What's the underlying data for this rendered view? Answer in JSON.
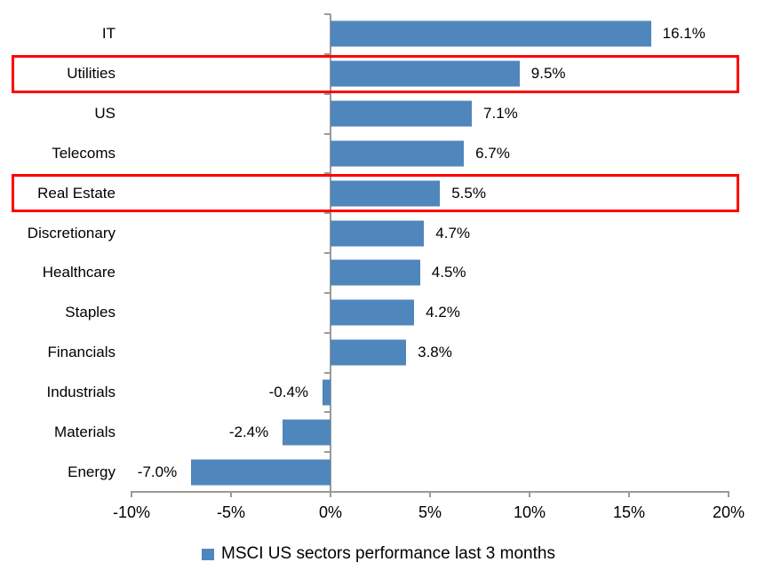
{
  "chart_data": {
    "type": "bar",
    "orientation": "horizontal",
    "categories": [
      "IT",
      "Utilities",
      "US",
      "Telecoms",
      "Real Estate",
      "Discretionary",
      "Healthcare",
      "Staples",
      "Financials",
      "Industrials",
      "Materials",
      "Energy"
    ],
    "values": [
      16.1,
      9.5,
      7.1,
      6.7,
      5.5,
      4.7,
      4.5,
      4.2,
      3.8,
      -0.4,
      -2.4,
      -7.0
    ],
    "value_labels": [
      "16.1%",
      "9.5%",
      "7.1%",
      "6.7%",
      "5.5%",
      "4.7%",
      "4.5%",
      "4.2%",
      "3.8%",
      "-0.4%",
      "-2.4%",
      "-7.0%"
    ],
    "highlighted_categories": [
      "Utilities",
      "Real Estate"
    ],
    "x_tick_labels": [
      "-10%",
      "-5%",
      "0%",
      "5%",
      "10%",
      "15%",
      "20%"
    ],
    "x_tick_values": [
      -10,
      -5,
      0,
      5,
      10,
      15,
      20
    ],
    "xlim": [
      -10,
      20
    ],
    "grid": "off",
    "legend": "MSCI US sectors performance last 3 months",
    "legend_position": "bottom-center",
    "bar_color": "#4f86bc",
    "highlight_color": "#ff0000",
    "axis_color": "#9a9a9a",
    "text_color": "#000000"
  }
}
